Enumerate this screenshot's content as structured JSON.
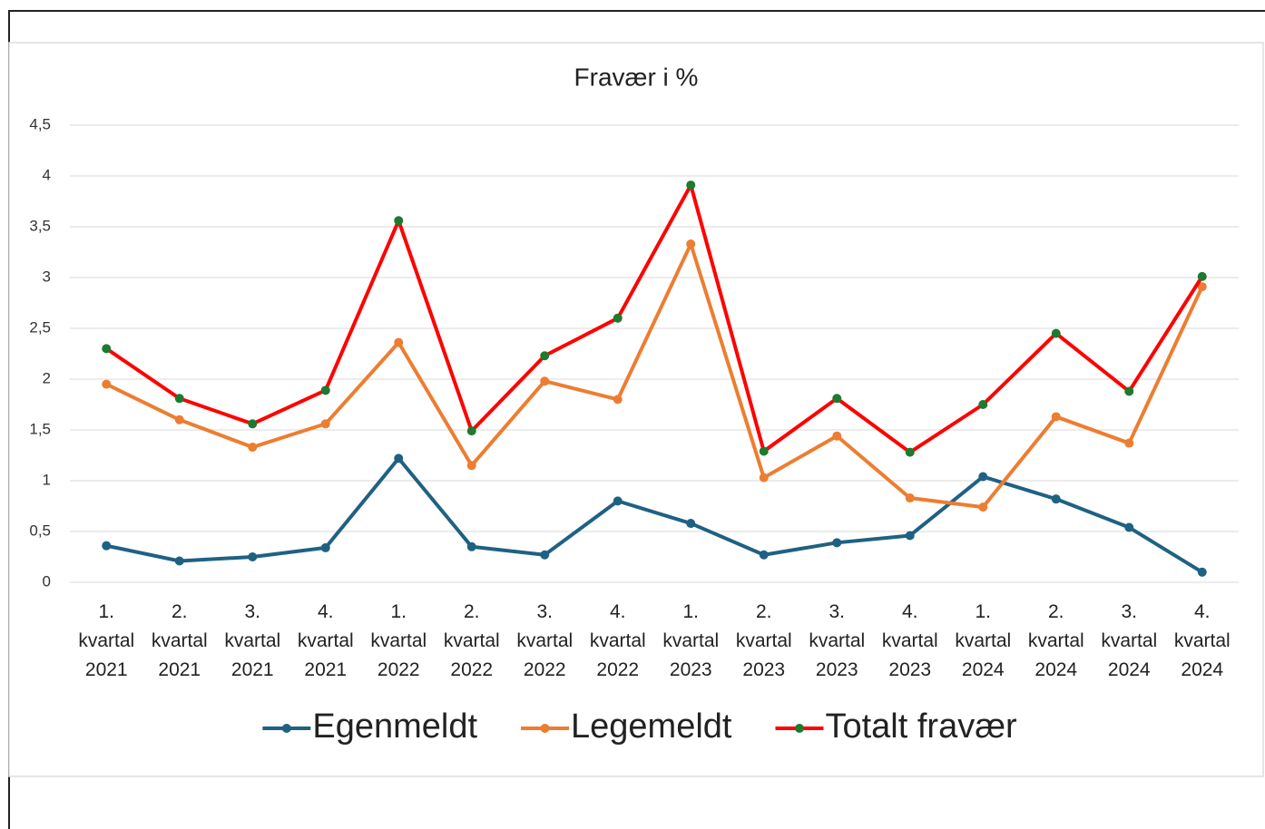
{
  "chart_data": {
    "type": "line",
    "title": "Fravær i %",
    "categories": [
      "1. kvartal 2021",
      "2. kvartal 2021",
      "3. kvartal 2021",
      "4. kvartal 2021",
      "1. kvartal 2022",
      "2. kvartal 2022",
      "3. kvartal 2022",
      "4. kvartal 2022",
      "1. kvartal 2023",
      "2. kvartal 2023",
      "3. kvartal 2023",
      "4. kvartal 2023",
      "1. kvartal 2024",
      "2. kvartal 2024",
      "3. kvartal 2024",
      "4. kvartal 2024"
    ],
    "series": [
      {
        "name": "Egenmeldt",
        "color": "#1f6183",
        "marker_color": "#1f6183",
        "values": [
          0.36,
          0.21,
          0.25,
          0.34,
          1.22,
          0.35,
          0.27,
          0.8,
          0.58,
          0.27,
          0.39,
          0.46,
          1.04,
          0.82,
          0.54,
          0.1
        ]
      },
      {
        "name": "Legemeldt",
        "color": "#ed7d31",
        "marker_color": "#ed7d31",
        "values": [
          1.95,
          1.6,
          1.33,
          1.56,
          2.36,
          1.15,
          1.98,
          1.8,
          3.33,
          1.03,
          1.44,
          0.83,
          0.74,
          1.63,
          1.37,
          2.91
        ]
      },
      {
        "name": "Totalt fravær",
        "color": "#ff0000",
        "marker_color": "#1e7a2e",
        "values": [
          2.3,
          1.81,
          1.56,
          1.89,
          3.56,
          1.49,
          2.23,
          2.6,
          3.91,
          1.29,
          1.81,
          1.28,
          1.75,
          2.45,
          1.88,
          3.01
        ]
      }
    ],
    "ylim": [
      0,
      4.5
    ],
    "yticks": [
      0,
      {
        "value": 0.5,
        "label": "0,5"
      },
      1,
      {
        "value": 1.5,
        "label": "1,5"
      },
      2,
      {
        "value": 2.5,
        "label": "2,5"
      },
      3,
      {
        "value": 3.5,
        "label": "3,5"
      },
      4,
      {
        "value": 4.5,
        "label": "4,5"
      }
    ],
    "grid": true,
    "legend": "bottom"
  }
}
